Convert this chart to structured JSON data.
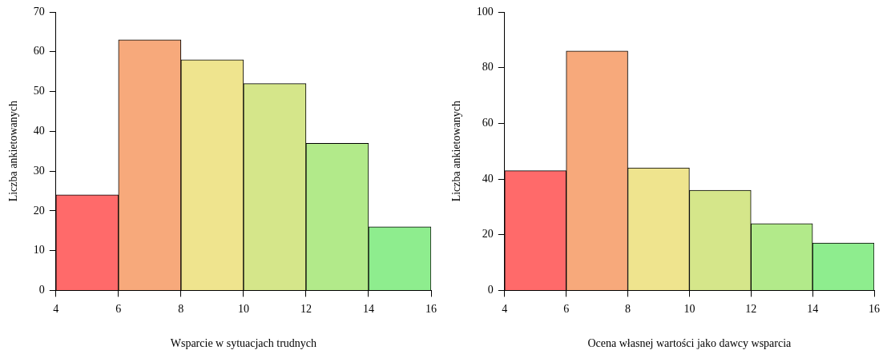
{
  "chart_data": [
    {
      "type": "histogram",
      "xlabel": "Wsparcie w sytuacjach trudnych",
      "ylabel": "Liczba ankietowanych",
      "bins": [
        4,
        6,
        8,
        10,
        12,
        14,
        16
      ],
      "values": [
        24,
        63,
        58,
        52,
        37,
        16
      ],
      "colors": [
        "#ff6a6a",
        "#f7a97b",
        "#efe48e",
        "#d5e68a",
        "#b2ea8a",
        "#8eed8e"
      ],
      "xlim": [
        4,
        16
      ],
      "xticks": [
        4,
        6,
        8,
        10,
        12,
        14,
        16
      ],
      "ylim": [
        0,
        70
      ],
      "yticks": [
        0,
        10,
        20,
        30,
        40,
        50,
        60,
        70
      ],
      "grid": false,
      "legend": false
    },
    {
      "type": "histogram",
      "xlabel": "Ocena własnej wartości jako dawcy wsparcia",
      "ylabel": "Liczba ankietowanych",
      "bins": [
        4,
        6,
        8,
        10,
        12,
        14,
        16
      ],
      "values": [
        43,
        86,
        44,
        36,
        24,
        17
      ],
      "colors": [
        "#ff6a6a",
        "#f7a97b",
        "#efe48e",
        "#d5e68a",
        "#b2ea8a",
        "#8eed8e"
      ],
      "xlim": [
        4,
        16
      ],
      "xticks": [
        4,
        6,
        8,
        10,
        12,
        14,
        16
      ],
      "ylim": [
        0,
        100
      ],
      "yticks": [
        0,
        20,
        40,
        60,
        80,
        100
      ],
      "grid": false,
      "legend": false
    }
  ]
}
